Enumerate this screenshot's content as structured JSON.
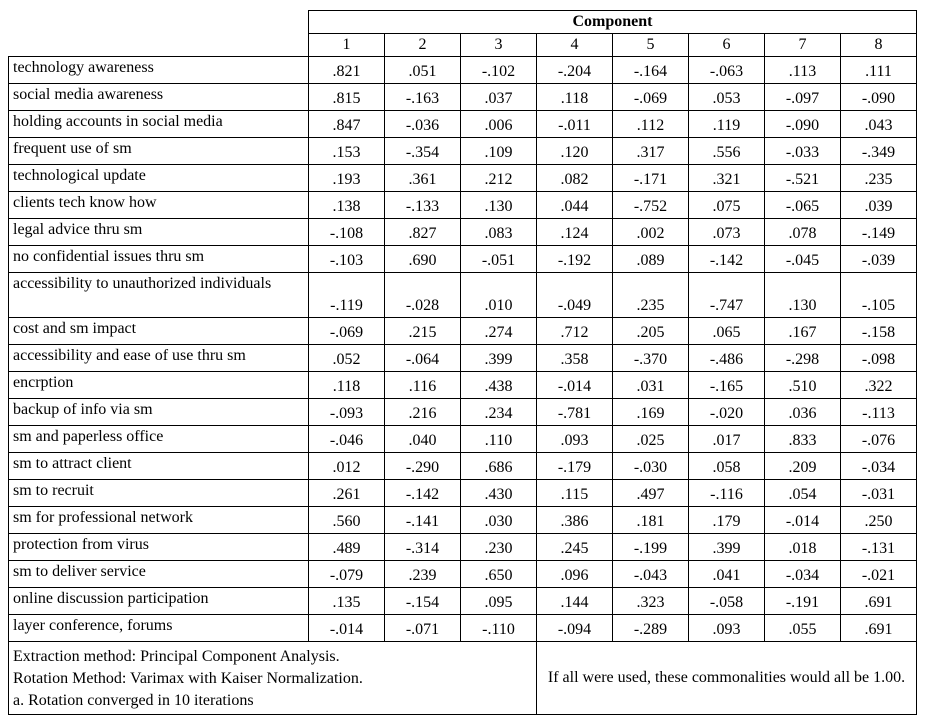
{
  "table": {
    "title": "Component",
    "columns": [
      "1",
      "2",
      "3",
      "4",
      "5",
      "6",
      "7",
      "8"
    ],
    "rows": [
      {
        "label": "technology awareness",
        "values": [
          ".821",
          ".051",
          "-.102",
          "-.204",
          "-.164",
          "-.063",
          ".113",
          ".111"
        ]
      },
      {
        "label": "social media awareness",
        "values": [
          ".815",
          "-.163",
          ".037",
          ".118",
          "-.069",
          ".053",
          "-.097",
          "-.090"
        ]
      },
      {
        "label": "holding accounts in social media",
        "values": [
          ".847",
          "-.036",
          ".006",
          "-.011",
          ".112",
          ".119",
          "-.090",
          ".043"
        ]
      },
      {
        "label": "frequent use of sm",
        "values": [
          ".153",
          "-.354",
          ".109",
          ".120",
          ".317",
          ".556",
          "-.033",
          "-.349"
        ]
      },
      {
        "label": "technological update",
        "values": [
          ".193",
          ".361",
          ".212",
          ".082",
          "-.171",
          ".321",
          "-.521",
          ".235"
        ]
      },
      {
        "label": "clients tech know how",
        "values": [
          ".138",
          "-.133",
          ".130",
          ".044",
          "-.752",
          ".075",
          "-.065",
          ".039"
        ]
      },
      {
        "label": "legal advice thru sm",
        "values": [
          "-.108",
          ".827",
          ".083",
          ".124",
          ".002",
          ".073",
          ".078",
          "-.149"
        ]
      },
      {
        "label": "no confidential issues thru sm",
        "values": [
          "-.103",
          ".690",
          "-.051",
          "-.192",
          ".089",
          "-.142",
          "-.045",
          "-.039"
        ]
      },
      {
        "label": "accessibility to unauthorized individuals",
        "values": [
          "-.119",
          "-.028",
          ".010",
          "-.049",
          ".235",
          "-.747",
          ".130",
          "-.105"
        ]
      },
      {
        "label": "cost and sm impact",
        "values": [
          "-.069",
          ".215",
          ".274",
          ".712",
          ".205",
          ".065",
          ".167",
          "-.158"
        ]
      },
      {
        "label": "accessibility and ease of use thru sm",
        "values": [
          ".052",
          "-.064",
          ".399",
          ".358",
          "-.370",
          "-.486",
          "-.298",
          "-.098"
        ]
      },
      {
        "label": "encrption",
        "values": [
          ".118",
          ".116",
          ".438",
          "-.014",
          ".031",
          "-.165",
          ".510",
          ".322"
        ]
      },
      {
        "label": "backup of info via sm",
        "values": [
          "-.093",
          ".216",
          ".234",
          "-.781",
          ".169",
          "-.020",
          ".036",
          "-.113"
        ]
      },
      {
        "label": "sm and paperless office",
        "values": [
          "-.046",
          ".040",
          ".110",
          ".093",
          ".025",
          ".017",
          ".833",
          "-.076"
        ]
      },
      {
        "label": "sm to attract client",
        "values": [
          ".012",
          "-.290",
          ".686",
          "-.179",
          "-.030",
          ".058",
          ".209",
          "-.034"
        ]
      },
      {
        "label": "sm to recruit",
        "values": [
          ".261",
          "-.142",
          ".430",
          ".115",
          ".497",
          "-.116",
          ".054",
          "-.031"
        ]
      },
      {
        "label": "sm for professional network",
        "values": [
          ".560",
          "-.141",
          ".030",
          ".386",
          ".181",
          ".179",
          "-.014",
          ".250"
        ]
      },
      {
        "label": "protection from virus",
        "values": [
          ".489",
          "-.314",
          ".230",
          ".245",
          "-.199",
          ".399",
          ".018",
          "-.131"
        ]
      },
      {
        "label": "sm to deliver service",
        "values": [
          "-.079",
          ".239",
          ".650",
          ".096",
          "-.043",
          ".041",
          "-.034",
          "-.021"
        ]
      },
      {
        "label": "online discussion participation",
        "values": [
          ".135",
          "-.154",
          ".095",
          ".144",
          ".323",
          "-.058",
          "-.191",
          ".691"
        ]
      },
      {
        "label": "layer conference, forums",
        "values": [
          "-.014",
          "-.071",
          "-.110",
          "-.094",
          "-.289",
          ".093",
          ".055",
          ".691"
        ]
      }
    ]
  },
  "footer": {
    "left": [
      "Extraction method: Principal Component Analysis.",
      "Rotation Method: Varimax with Kaiser Normalization.",
      "a. Rotation converged in 10 iterations"
    ],
    "right": "If all were used, these commonalities would all be 1.00."
  }
}
